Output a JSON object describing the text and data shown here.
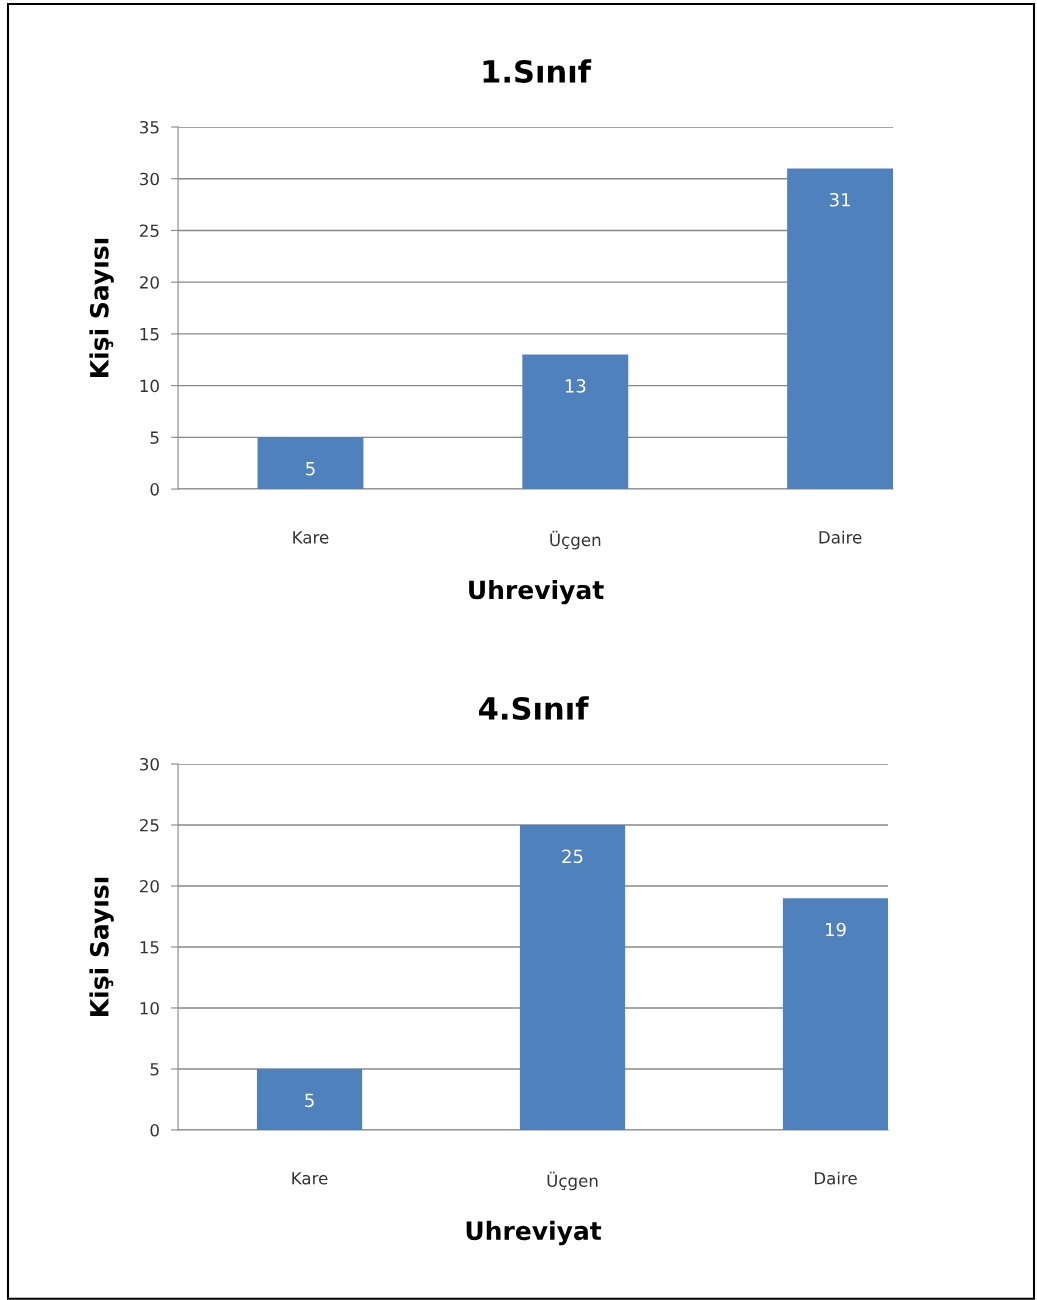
{
  "chart_data": [
    {
      "type": "bar",
      "title": "1.Sınıf",
      "xlabel": "Uhreviyat",
      "ylabel": "Kişi Sayısı",
      "categories": [
        "Kare",
        "Üçgen",
        "Daire"
      ],
      "values": [
        5,
        13,
        31
      ],
      "color": "#4f81bd",
      "ylim": [
        0,
        35
      ],
      "yticks": [
        0,
        5,
        10,
        15,
        20,
        25,
        30,
        35
      ],
      "grid": "y",
      "data_labels": true,
      "legend": false
    },
    {
      "type": "bar",
      "title": "4.Sınıf",
      "xlabel": "Uhreviyat",
      "ylabel": "Kişi Sayısı",
      "categories": [
        "Kare",
        "Üçgen",
        "Daire"
      ],
      "values": [
        5,
        25,
        19
      ],
      "color": "#4f81bd",
      "ylim": [
        0,
        30
      ],
      "yticks": [
        0,
        5,
        10,
        15,
        20,
        25,
        30
      ],
      "grid": "y",
      "data_labels": true,
      "legend": false
    }
  ]
}
